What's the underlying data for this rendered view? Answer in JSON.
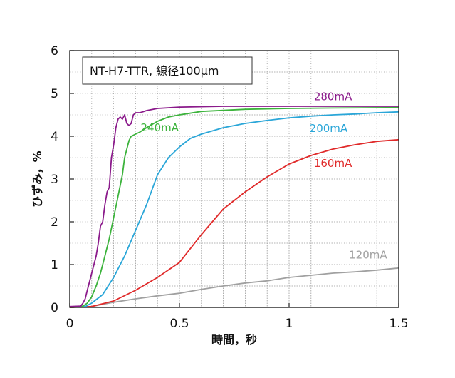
{
  "chart_data": {
    "type": "line",
    "annotation": "NT-H7-TTR, 線径100μm",
    "xlabel": "時間，秒",
    "ylabel": "ひずみ，%",
    "xlim": [
      0,
      1.5
    ],
    "ylim": [
      0,
      6
    ],
    "xticks": [
      0,
      0.5,
      1,
      1.5
    ],
    "xtick_labels": [
      "0",
      "0.5",
      "1",
      "1.5"
    ],
    "yticks": [
      0,
      1,
      2,
      3,
      4,
      5,
      6
    ],
    "ytick_labels": [
      "0",
      "1",
      "2",
      "3",
      "4",
      "5",
      "6"
    ],
    "grid": true,
    "series": [
      {
        "name": "280mA",
        "color": "#8b1a8b",
        "points": [
          [
            0,
            0.02
          ],
          [
            0.05,
            0.03
          ],
          [
            0.06,
            0.1
          ],
          [
            0.07,
            0.2
          ],
          [
            0.08,
            0.4
          ],
          [
            0.09,
            0.6
          ],
          [
            0.1,
            0.8
          ],
          [
            0.11,
            1.0
          ],
          [
            0.12,
            1.2
          ],
          [
            0.13,
            1.5
          ],
          [
            0.14,
            1.9
          ],
          [
            0.15,
            2.0
          ],
          [
            0.16,
            2.4
          ],
          [
            0.17,
            2.7
          ],
          [
            0.18,
            2.8
          ],
          [
            0.19,
            3.5
          ],
          [
            0.2,
            3.8
          ],
          [
            0.21,
            4.2
          ],
          [
            0.22,
            4.4
          ],
          [
            0.23,
            4.45
          ],
          [
            0.24,
            4.4
          ],
          [
            0.25,
            4.5
          ],
          [
            0.26,
            4.3
          ],
          [
            0.27,
            4.25
          ],
          [
            0.28,
            4.3
          ],
          [
            0.29,
            4.5
          ],
          [
            0.3,
            4.55
          ],
          [
            0.32,
            4.55
          ],
          [
            0.35,
            4.6
          ],
          [
            0.4,
            4.65
          ],
          [
            0.5,
            4.68
          ],
          [
            0.7,
            4.7
          ],
          [
            1.0,
            4.7
          ],
          [
            1.5,
            4.7
          ]
        ]
      },
      {
        "name": "240mA",
        "color": "#3cb33c",
        "points": [
          [
            0,
            0.01
          ],
          [
            0.06,
            0.03
          ],
          [
            0.08,
            0.1
          ],
          [
            0.1,
            0.25
          ],
          [
            0.12,
            0.5
          ],
          [
            0.14,
            0.8
          ],
          [
            0.16,
            1.2
          ],
          [
            0.18,
            1.6
          ],
          [
            0.2,
            2.1
          ],
          [
            0.22,
            2.6
          ],
          [
            0.24,
            3.1
          ],
          [
            0.25,
            3.5
          ],
          [
            0.26,
            3.7
          ],
          [
            0.27,
            3.9
          ],
          [
            0.28,
            4.0
          ],
          [
            0.3,
            4.05
          ],
          [
            0.32,
            4.1
          ],
          [
            0.35,
            4.2
          ],
          [
            0.4,
            4.35
          ],
          [
            0.45,
            4.45
          ],
          [
            0.5,
            4.5
          ],
          [
            0.6,
            4.58
          ],
          [
            0.8,
            4.63
          ],
          [
            1.0,
            4.65
          ],
          [
            1.2,
            4.66
          ],
          [
            1.5,
            4.67
          ]
        ]
      },
      {
        "name": "200mA",
        "color": "#2aa6d8",
        "points": [
          [
            0,
            0.01
          ],
          [
            0.07,
            0.02
          ],
          [
            0.1,
            0.1
          ],
          [
            0.15,
            0.3
          ],
          [
            0.2,
            0.7
          ],
          [
            0.25,
            1.2
          ],
          [
            0.3,
            1.8
          ],
          [
            0.35,
            2.4
          ],
          [
            0.4,
            3.1
          ],
          [
            0.45,
            3.5
          ],
          [
            0.5,
            3.75
          ],
          [
            0.55,
            3.95
          ],
          [
            0.6,
            4.05
          ],
          [
            0.7,
            4.2
          ],
          [
            0.8,
            4.3
          ],
          [
            0.9,
            4.37
          ],
          [
            1.0,
            4.43
          ],
          [
            1.1,
            4.47
          ],
          [
            1.2,
            4.5
          ],
          [
            1.3,
            4.52
          ],
          [
            1.4,
            4.55
          ],
          [
            1.5,
            4.57
          ]
        ]
      },
      {
        "name": "160mA",
        "color": "#e02a2a",
        "points": [
          [
            0,
            0.0
          ],
          [
            0.1,
            0.02
          ],
          [
            0.2,
            0.15
          ],
          [
            0.3,
            0.4
          ],
          [
            0.4,
            0.7
          ],
          [
            0.5,
            1.05
          ],
          [
            0.6,
            1.7
          ],
          [
            0.7,
            2.3
          ],
          [
            0.8,
            2.7
          ],
          [
            0.9,
            3.05
          ],
          [
            1.0,
            3.35
          ],
          [
            1.1,
            3.55
          ],
          [
            1.2,
            3.7
          ],
          [
            1.3,
            3.8
          ],
          [
            1.4,
            3.88
          ],
          [
            1.5,
            3.92
          ]
        ]
      },
      {
        "name": "120mA",
        "color": "#a0a0a0",
        "points": [
          [
            0,
            0.0
          ],
          [
            0.1,
            0.02
          ],
          [
            0.2,
            0.12
          ],
          [
            0.3,
            0.2
          ],
          [
            0.4,
            0.27
          ],
          [
            0.5,
            0.33
          ],
          [
            0.6,
            0.42
          ],
          [
            0.7,
            0.5
          ],
          [
            0.8,
            0.57
          ],
          [
            0.9,
            0.62
          ],
          [
            1.0,
            0.7
          ],
          [
            1.1,
            0.75
          ],
          [
            1.2,
            0.8
          ],
          [
            1.3,
            0.83
          ],
          [
            1.4,
            0.87
          ],
          [
            1.5,
            0.92
          ]
        ]
      }
    ]
  }
}
